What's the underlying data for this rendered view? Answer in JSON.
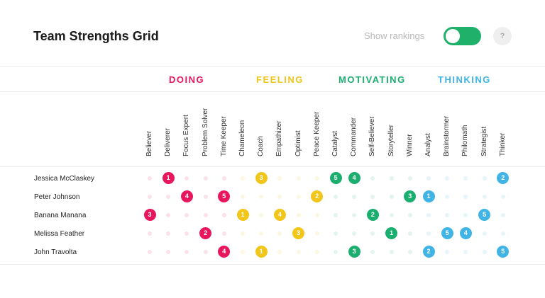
{
  "header": {
    "title": "Team Strengths Grid",
    "show_rankings_label": "Show rankings",
    "show_rankings_on": true,
    "help_label": "?"
  },
  "colors": {
    "doing": "#e8175d",
    "feeling": "#f2c51a",
    "motivating": "#1aae6f",
    "thinking": "#3fb4e5"
  },
  "categories": [
    {
      "key": "doing",
      "label": "DOING"
    },
    {
      "key": "feeling",
      "label": "FEELING"
    },
    {
      "key": "motivating",
      "label": "MOTIVATING"
    },
    {
      "key": "thinking",
      "label": "THINKING"
    }
  ],
  "columns": [
    {
      "label": "Believer",
      "cat": "doing"
    },
    {
      "label": "Deliverer",
      "cat": "doing"
    },
    {
      "label": "Focus Expert",
      "cat": "doing"
    },
    {
      "label": "Problem Solver",
      "cat": "doing"
    },
    {
      "label": "Time Keeper",
      "cat": "doing"
    },
    {
      "label": "Chameleon",
      "cat": "feeling"
    },
    {
      "label": "Coach",
      "cat": "feeling"
    },
    {
      "label": "Empathizer",
      "cat": "feeling"
    },
    {
      "label": "Optimist",
      "cat": "feeling"
    },
    {
      "label": "Peace Keeper",
      "cat": "feeling"
    },
    {
      "label": "Catalyst",
      "cat": "motivating"
    },
    {
      "label": "Commander",
      "cat": "motivating"
    },
    {
      "label": "Self-Believer",
      "cat": "motivating"
    },
    {
      "label": "Storyteller",
      "cat": "motivating"
    },
    {
      "label": "Winner",
      "cat": "motivating"
    },
    {
      "label": "Analyst",
      "cat": "thinking"
    },
    {
      "label": "Brainstormer",
      "cat": "thinking"
    },
    {
      "label": "Philomath",
      "cat": "thinking"
    },
    {
      "label": "Strategist",
      "cat": "thinking"
    },
    {
      "label": "Thinker",
      "cat": "thinking"
    }
  ],
  "people": [
    {
      "name": "Jessica McClaskey",
      "ranks": [
        0,
        1,
        0,
        0,
        0,
        0,
        3,
        0,
        0,
        0,
        5,
        4,
        0,
        0,
        0,
        0,
        0,
        0,
        0,
        2
      ]
    },
    {
      "name": "Peter Johnson",
      "ranks": [
        0,
        0,
        4,
        0,
        5,
        0,
        0,
        0,
        0,
        2,
        0,
        0,
        0,
        0,
        3,
        1,
        0,
        0,
        0,
        0
      ]
    },
    {
      "name": "Banana Manana",
      "ranks": [
        3,
        0,
        0,
        0,
        0,
        1,
        0,
        4,
        0,
        0,
        0,
        0,
        2,
        0,
        0,
        0,
        0,
        0,
        5,
        0
      ]
    },
    {
      "name": "Melissa Feather",
      "ranks": [
        0,
        0,
        0,
        2,
        0,
        0,
        0,
        0,
        3,
        0,
        0,
        0,
        0,
        1,
        0,
        0,
        5,
        4,
        0,
        0
      ]
    },
    {
      "name": "John Travolta",
      "ranks": [
        0,
        0,
        0,
        0,
        4,
        0,
        1,
        0,
        0,
        0,
        0,
        3,
        0,
        0,
        0,
        2,
        0,
        0,
        0,
        5
      ]
    }
  ]
}
